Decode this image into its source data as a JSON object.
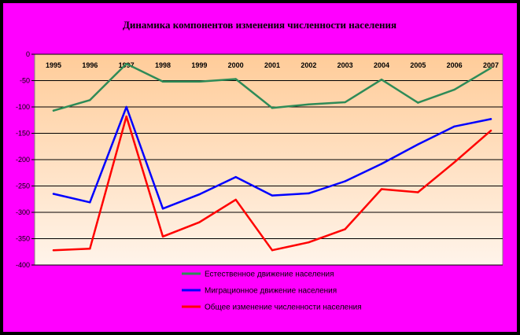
{
  "chart_data": {
    "type": "line",
    "title": "Динамика компонентов изменения численности населения",
    "xlabel": "",
    "ylabel": "",
    "categories": [
      "1995",
      "1996",
      "1997",
      "1998",
      "1999",
      "2000",
      "2001",
      "2002",
      "2003",
      "2004",
      "2005",
      "2006",
      "2007"
    ],
    "ylim": [
      -400,
      0
    ],
    "yticks": [
      0,
      -50,
      -100,
      -150,
      -200,
      -250,
      -300,
      -350,
      -400
    ],
    "x_axis_position": "top",
    "grid": true,
    "legend_position": "bottom",
    "series": [
      {
        "name": "Естественное движение населения",
        "color": "#2e8b57",
        "values": [
          -107,
          -87,
          -18,
          -52,
          -52,
          -47,
          -102,
          -95,
          -91,
          -48,
          -92,
          -67,
          -26
        ]
      },
      {
        "name": "Миграционное движение населения",
        "color": "#0000ff",
        "values": [
          -265,
          -281,
          -100,
          -293,
          -266,
          -233,
          -268,
          -264,
          -241,
          -208,
          -171,
          -137,
          -123
        ]
      },
      {
        "name": "Общее изменение численности населения",
        "color": "#ff0000",
        "values": [
          -372,
          -369,
          -118,
          -346,
          -319,
          -276,
          -372,
          -357,
          -332,
          -256,
          -262,
          -205,
          -145
        ]
      }
    ]
  },
  "colors": {
    "background": "#ff00ff",
    "plot_top": "#ffcc99",
    "plot_bottom": "#fff4ea"
  }
}
